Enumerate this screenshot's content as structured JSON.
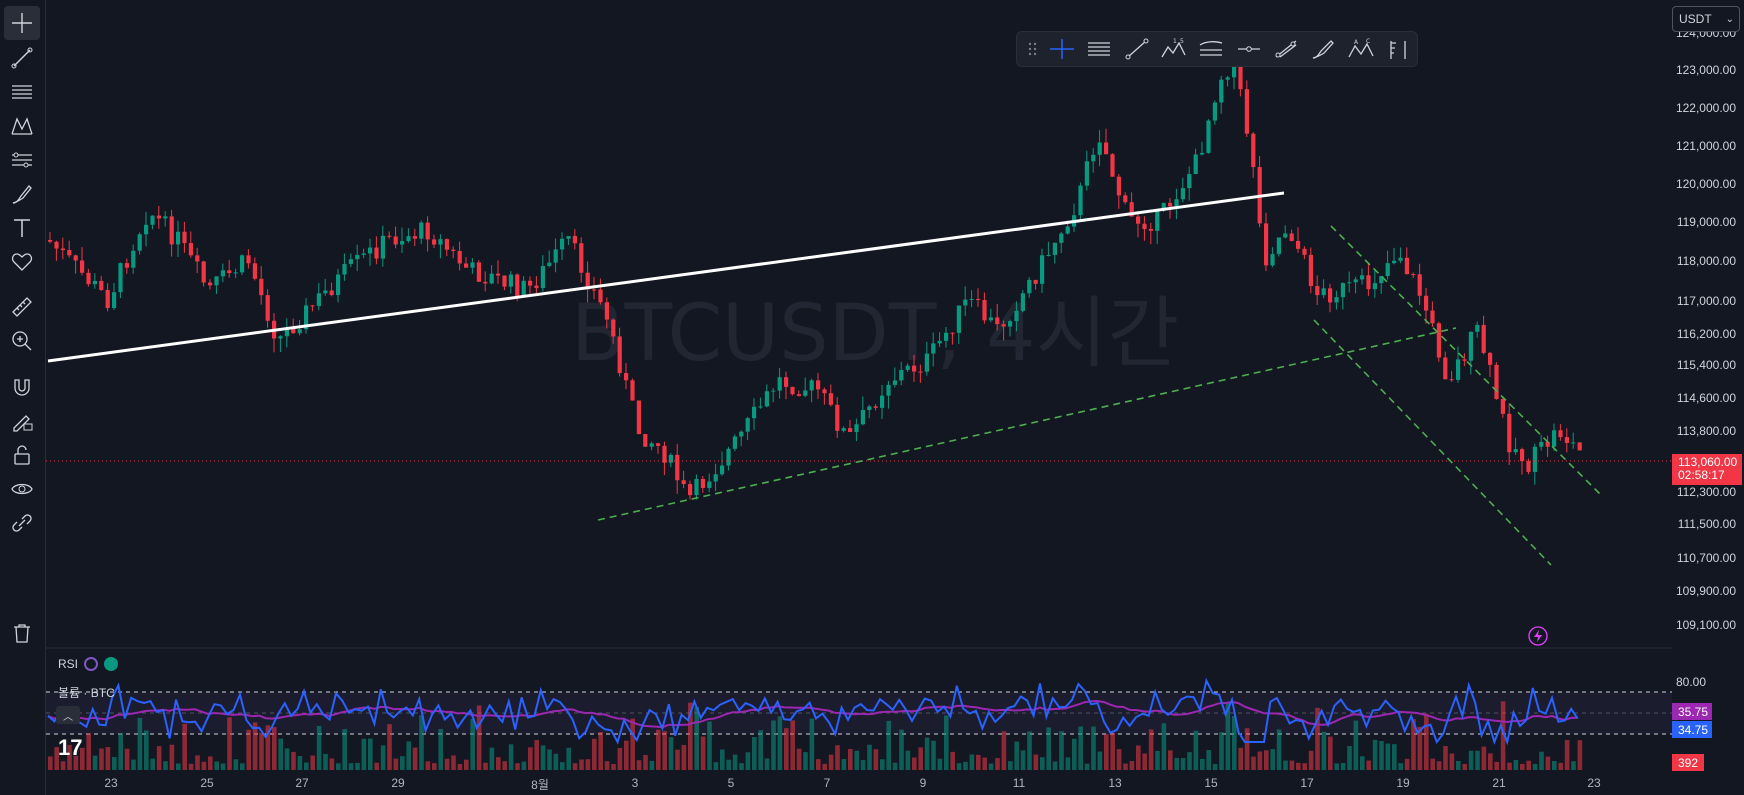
{
  "watermark": "BTCUSDT, 4시간",
  "currency_select": {
    "value": "USDT"
  },
  "left_tools": [
    {
      "name": "crosshair-icon"
    },
    {
      "name": "trend-line-icon"
    },
    {
      "name": "fib-retracement-icon"
    },
    {
      "name": "pattern-icon"
    },
    {
      "name": "prediction-icon"
    },
    {
      "name": "brush-icon"
    },
    {
      "name": "text-icon"
    },
    {
      "name": "heart-icon"
    },
    {
      "name": "ruler-icon"
    },
    {
      "name": "zoom-in-icon"
    },
    {
      "name": "magnet-icon"
    },
    {
      "name": "lock-drawing-icon"
    },
    {
      "name": "lock-icon"
    },
    {
      "name": "eye-icon"
    },
    {
      "name": "link-icon"
    },
    {
      "name": "trash-icon"
    }
  ],
  "drawing_toolbar": [
    {
      "name": "drag-handle-icon"
    },
    {
      "name": "crosshair-icon"
    },
    {
      "name": "horizontal-lines-icon"
    },
    {
      "name": "trend-line-icon"
    },
    {
      "name": "elliott-wave-icon",
      "sup": "1 5"
    },
    {
      "name": "parallel-channel-icon"
    },
    {
      "name": "horizontal-ray-icon"
    },
    {
      "name": "fib-channel-icon"
    },
    {
      "name": "brush-icon"
    },
    {
      "name": "abcd-pattern-icon",
      "sup": "A C"
    },
    {
      "name": "bars-pattern-icon"
    }
  ],
  "price_axis": {
    "ticks": [
      "124,000.00",
      "123,000.00",
      "122,000.00",
      "121,000.00",
      "120,000.00",
      "119,000.00",
      "118,000.00",
      "117,000.00",
      "116,200.00",
      "115,400.00",
      "114,600.00",
      "113,800.00",
      "112,300.00",
      "111,500.00",
      "110,700.00",
      "109,900.00",
      "109,100.00"
    ],
    "current_price": "113,060.00",
    "countdown": "02:58:17"
  },
  "time_axis": {
    "ticks": [
      "23",
      "25",
      "27",
      "29",
      "8월",
      "3",
      "5",
      "7",
      "9",
      "11",
      "13",
      "15",
      "17",
      "19",
      "21",
      "23"
    ]
  },
  "rsi": {
    "label": "RSI",
    "upper": "80.00",
    "value_a": "35.75",
    "value_b": "34.75",
    "colors": {
      "rsi": "#2962ff",
      "ma": "#9c27b0"
    }
  },
  "volume": {
    "label": "볼륨 · BTC",
    "value": "392"
  },
  "logo": "17",
  "colors": {
    "up": "#089981",
    "down": "#f23645",
    "trend": "#ffffff",
    "channel": "#4caf50"
  }
}
